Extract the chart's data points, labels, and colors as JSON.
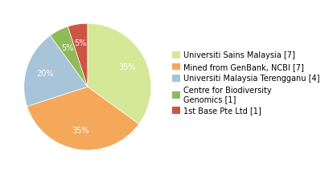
{
  "labels": [
    "Universiti Sains Malaysia [7]",
    "Mined from GenBank, NCBI [7]",
    "Universiti Malaysia Terengganu [4]",
    "Centre for Biodiversity\nGenomics [1]",
    "1st Base Pte Ltd [1]"
  ],
  "values": [
    7,
    7,
    4,
    1,
    1
  ],
  "colors": [
    "#d4e897",
    "#f5a85a",
    "#a8c4d8",
    "#8fba5a",
    "#cc5544"
  ],
  "startangle": 90,
  "legend_labels": [
    "Universiti Sains Malaysia [7]",
    "Mined from GenBank, NCBI [7]",
    "Universiti Malaysia Terengganu [4]",
    "Centre for Biodiversity\nGenomics [1]",
    "1st Base Pte Ltd [1]"
  ],
  "fontsize_pct": 7,
  "fontsize_legend": 7,
  "pct_distance": 0.7
}
